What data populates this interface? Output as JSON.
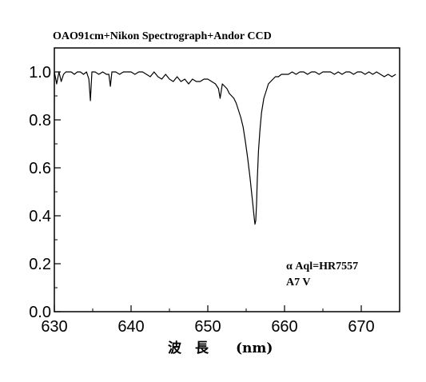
{
  "chart_data": {
    "type": "line",
    "title": "OAO91cm+Nikon Spectrograph+Andor CCD",
    "xlabel": "波　長　　(nm)",
    "ylabel": "",
    "xlim": [
      630,
      675
    ],
    "ylim": [
      0.0,
      1.1
    ],
    "x_ticks": [
      630,
      640,
      650,
      660,
      670
    ],
    "y_ticks": [
      0.0,
      0.2,
      0.4,
      0.6,
      0.8,
      1.0
    ],
    "x_tick_labels": [
      "630",
      "640",
      "650",
      "660",
      "670"
    ],
    "y_tick_labels": [
      "0.0",
      "0.2",
      "0.4",
      "0.6",
      "0.8",
      "1.0"
    ],
    "grid": false,
    "annotations": [
      "α Aql=HR7557",
      "A7 V"
    ],
    "series": [
      {
        "values_note": "",
        "x": [
          630.0,
          630.3,
          630.6,
          630.9,
          631.2,
          631.5,
          631.8,
          632.2,
          632.6,
          633.0,
          633.4,
          633.8,
          634.2,
          634.5,
          634.7,
          634.9,
          635.3,
          635.8,
          636.3,
          636.8,
          637.1,
          637.3,
          637.5,
          638.0,
          638.5,
          639.0,
          639.5,
          640.0,
          640.5,
          641.0,
          641.5,
          642.0,
          642.5,
          643.0,
          643.5,
          644.0,
          644.5,
          645.0,
          645.5,
          646.0,
          646.5,
          647.0,
          647.5,
          648.0,
          648.5,
          649.0,
          649.5,
          650.0,
          650.5,
          651.0,
          651.4,
          651.6,
          651.9,
          652.2,
          652.5,
          652.8,
          653.1,
          653.4,
          653.7,
          654.0,
          654.3,
          654.6,
          654.9,
          655.2,
          655.5,
          655.7,
          655.9,
          656.05,
          656.15,
          656.25,
          656.35,
          656.45,
          656.6,
          656.8,
          657.0,
          657.3,
          657.6,
          657.9,
          658.2,
          658.5,
          658.8,
          659.2,
          659.6,
          660.0,
          660.5,
          661.0,
          661.5,
          662.0,
          662.5,
          663.0,
          663.5,
          664.0,
          664.5,
          665.0,
          665.5,
          666.0,
          666.5,
          667.0,
          667.5,
          668.0,
          668.5,
          669.0,
          669.5,
          670.0,
          670.5,
          671.0,
          671.5,
          672.0,
          672.5,
          673.0,
          673.5,
          674.0,
          674.5
        ],
        "y": [
          1.0,
          0.95,
          1.0,
          0.96,
          0.99,
          1.0,
          1.0,
          1.0,
          0.99,
          1.0,
          1.0,
          0.99,
          1.0,
          0.97,
          0.88,
          1.0,
          1.0,
          0.99,
          1.0,
          0.99,
          0.99,
          0.94,
          1.0,
          1.0,
          0.99,
          1.0,
          1.0,
          1.0,
          0.99,
          1.0,
          1.0,
          0.99,
          0.98,
          1.0,
          0.98,
          0.97,
          0.99,
          0.97,
          0.96,
          0.98,
          0.96,
          0.97,
          0.95,
          0.97,
          0.96,
          0.96,
          0.97,
          0.97,
          0.96,
          0.95,
          0.93,
          0.89,
          0.95,
          0.94,
          0.93,
          0.91,
          0.9,
          0.89,
          0.87,
          0.84,
          0.81,
          0.77,
          0.71,
          0.64,
          0.56,
          0.5,
          0.44,
          0.39,
          0.365,
          0.38,
          0.45,
          0.55,
          0.67,
          0.76,
          0.83,
          0.89,
          0.92,
          0.95,
          0.96,
          0.97,
          0.98,
          0.98,
          0.99,
          0.99,
          0.99,
          1.0,
          0.99,
          1.0,
          1.0,
          0.99,
          1.0,
          1.0,
          0.99,
          1.0,
          1.0,
          1.0,
          0.99,
          1.0,
          0.99,
          1.0,
          1.0,
          0.99,
          1.0,
          1.0,
          0.99,
          1.0,
          0.99,
          1.0,
          0.99,
          0.98,
          0.99,
          0.98,
          0.99
        ]
      }
    ]
  }
}
